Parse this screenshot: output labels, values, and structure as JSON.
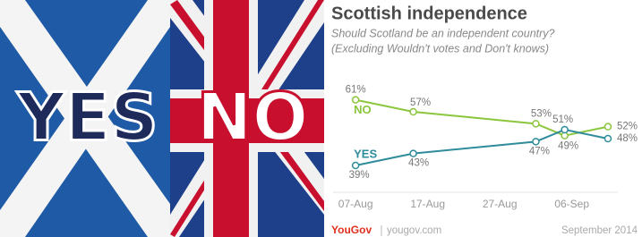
{
  "image_text": [
    "YES",
    "NO"
  ],
  "chart_data": {
    "type": "line",
    "title": "Scottish independence",
    "subtitle": [
      "Should Scotland be an independent country?",
      "(Excluding Wouldn't votes and Don't knows)"
    ],
    "x": [
      "07-Aug",
      "15-Aug",
      "01-Sep",
      "05-Sep",
      "11-Sep"
    ],
    "xlim": [
      "04-Aug",
      "12-Sep"
    ],
    "xticks": [
      "07-Aug",
      "17-Aug",
      "27-Aug",
      "06-Sep"
    ],
    "ylim": [
      30,
      66
    ],
    "grid": false,
    "series": [
      {
        "name": "NO",
        "color": "#8cc63e",
        "values": [
          61,
          57,
          53,
          49,
          52
        ],
        "value_labels": [
          "61%",
          "57%",
          "53%",
          "49%",
          "52%"
        ]
      },
      {
        "name": "YES",
        "color": "#2f8c9b",
        "values": [
          39,
          43,
          47,
          51,
          48
        ],
        "value_labels": [
          "39%",
          "43%",
          "47%",
          "51%",
          "48%"
        ]
      }
    ],
    "source": "YouGov",
    "source_url": "yougov.com",
    "date": "September 2014"
  }
}
